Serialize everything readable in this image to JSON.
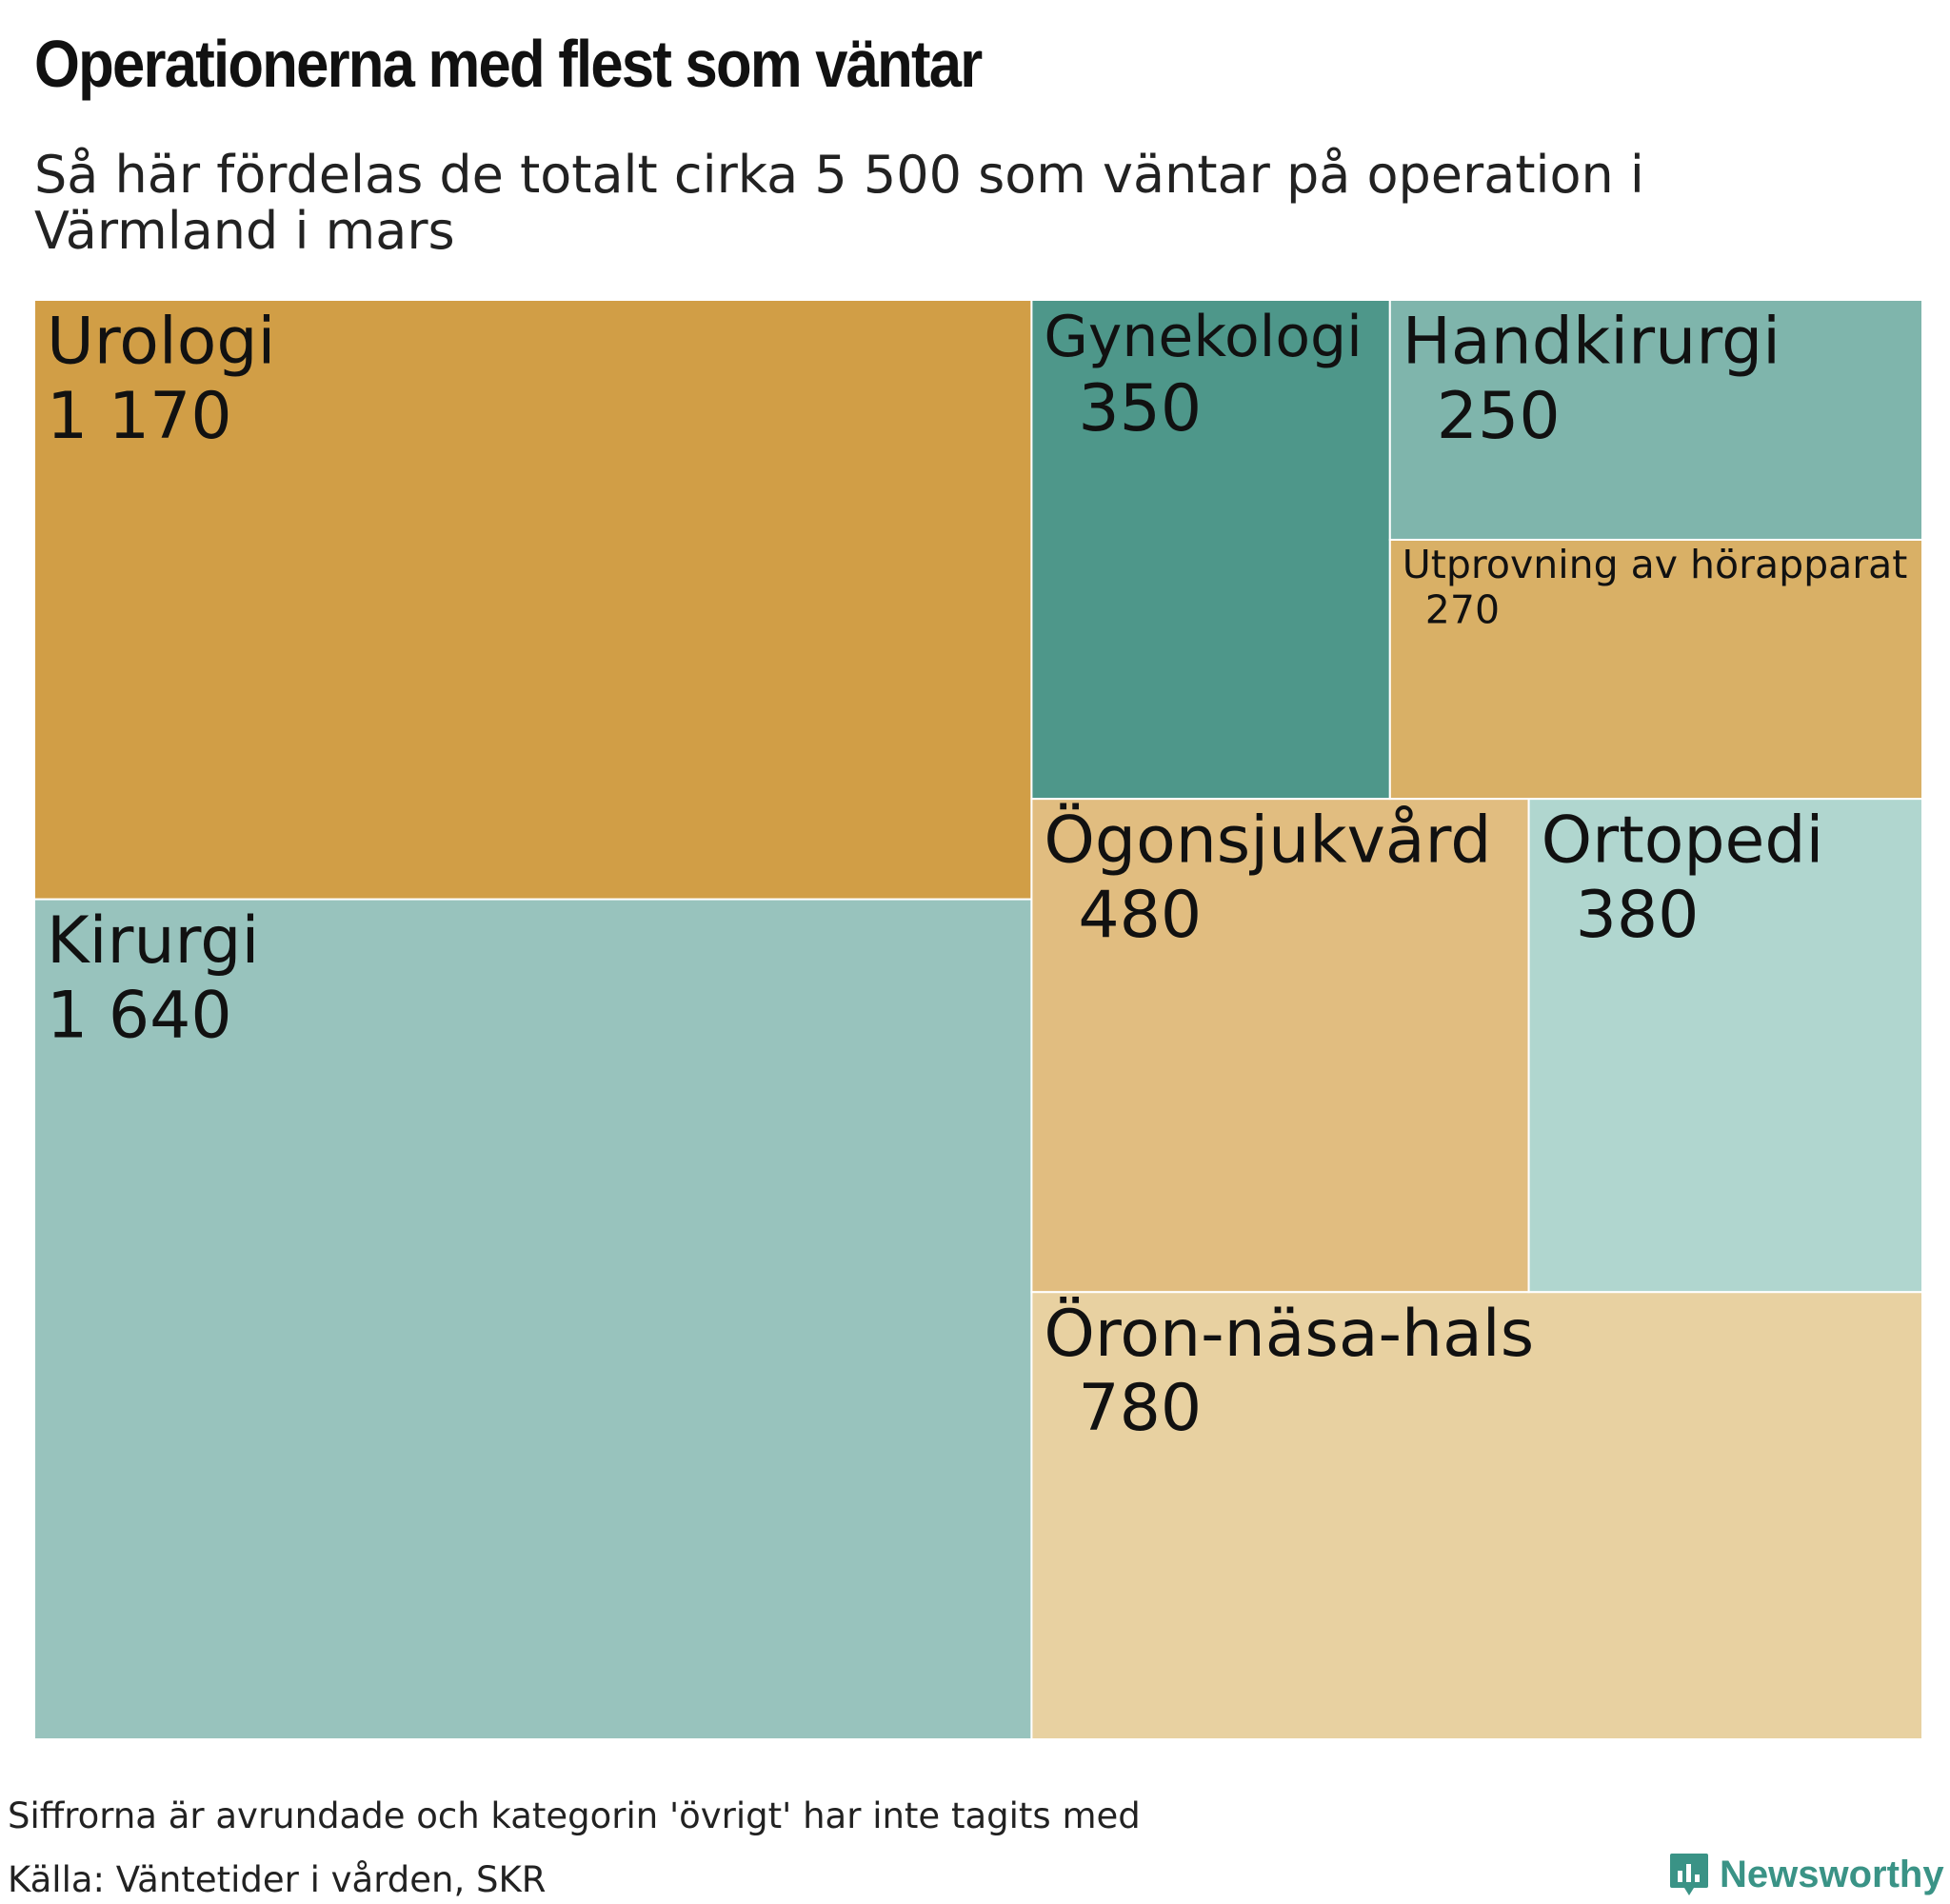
{
  "title": "Operationerna med flest som väntar",
  "subtitle": "Så här fördelas de totalt cirka 5 500 som väntar på operation i Värmland i mars",
  "footnote": "Siffrorna är avrundade och kategorin 'övrigt' har inte tagits med",
  "source": "Källa: Väntetider i vården, SKR",
  "brand": {
    "name": "Newsworthy",
    "icon": "newsworthy-logo-icon",
    "color": "#3a9386"
  },
  "chart_data": {
    "type": "treemap",
    "title": "Operationerna med flest som väntar",
    "subtitle": "Så här fördelas de totalt cirka 5 500 som väntar på operation i Värmland i mars",
    "categories": [
      "Kirurgi",
      "Urologi",
      "Öron-näsa-hals",
      "Ögonsjukvård",
      "Ortopedi",
      "Gynekologi",
      "Utprovning av hörapparat",
      "Handkirurgi"
    ],
    "values": [
      1640,
      1170,
      780,
      480,
      380,
      350,
      270,
      250
    ],
    "value_labels": [
      "1 640",
      "1 170",
      "780",
      "480",
      "380",
      "350",
      "270",
      "250"
    ],
    "colors": [
      "#98c3bd",
      "#d19e46",
      "#e8d1a1",
      "#e1bd80",
      "#b0d6cf",
      "#4e978a",
      "#d9b066",
      "#7fb5ac"
    ],
    "total_label": "5 500"
  }
}
